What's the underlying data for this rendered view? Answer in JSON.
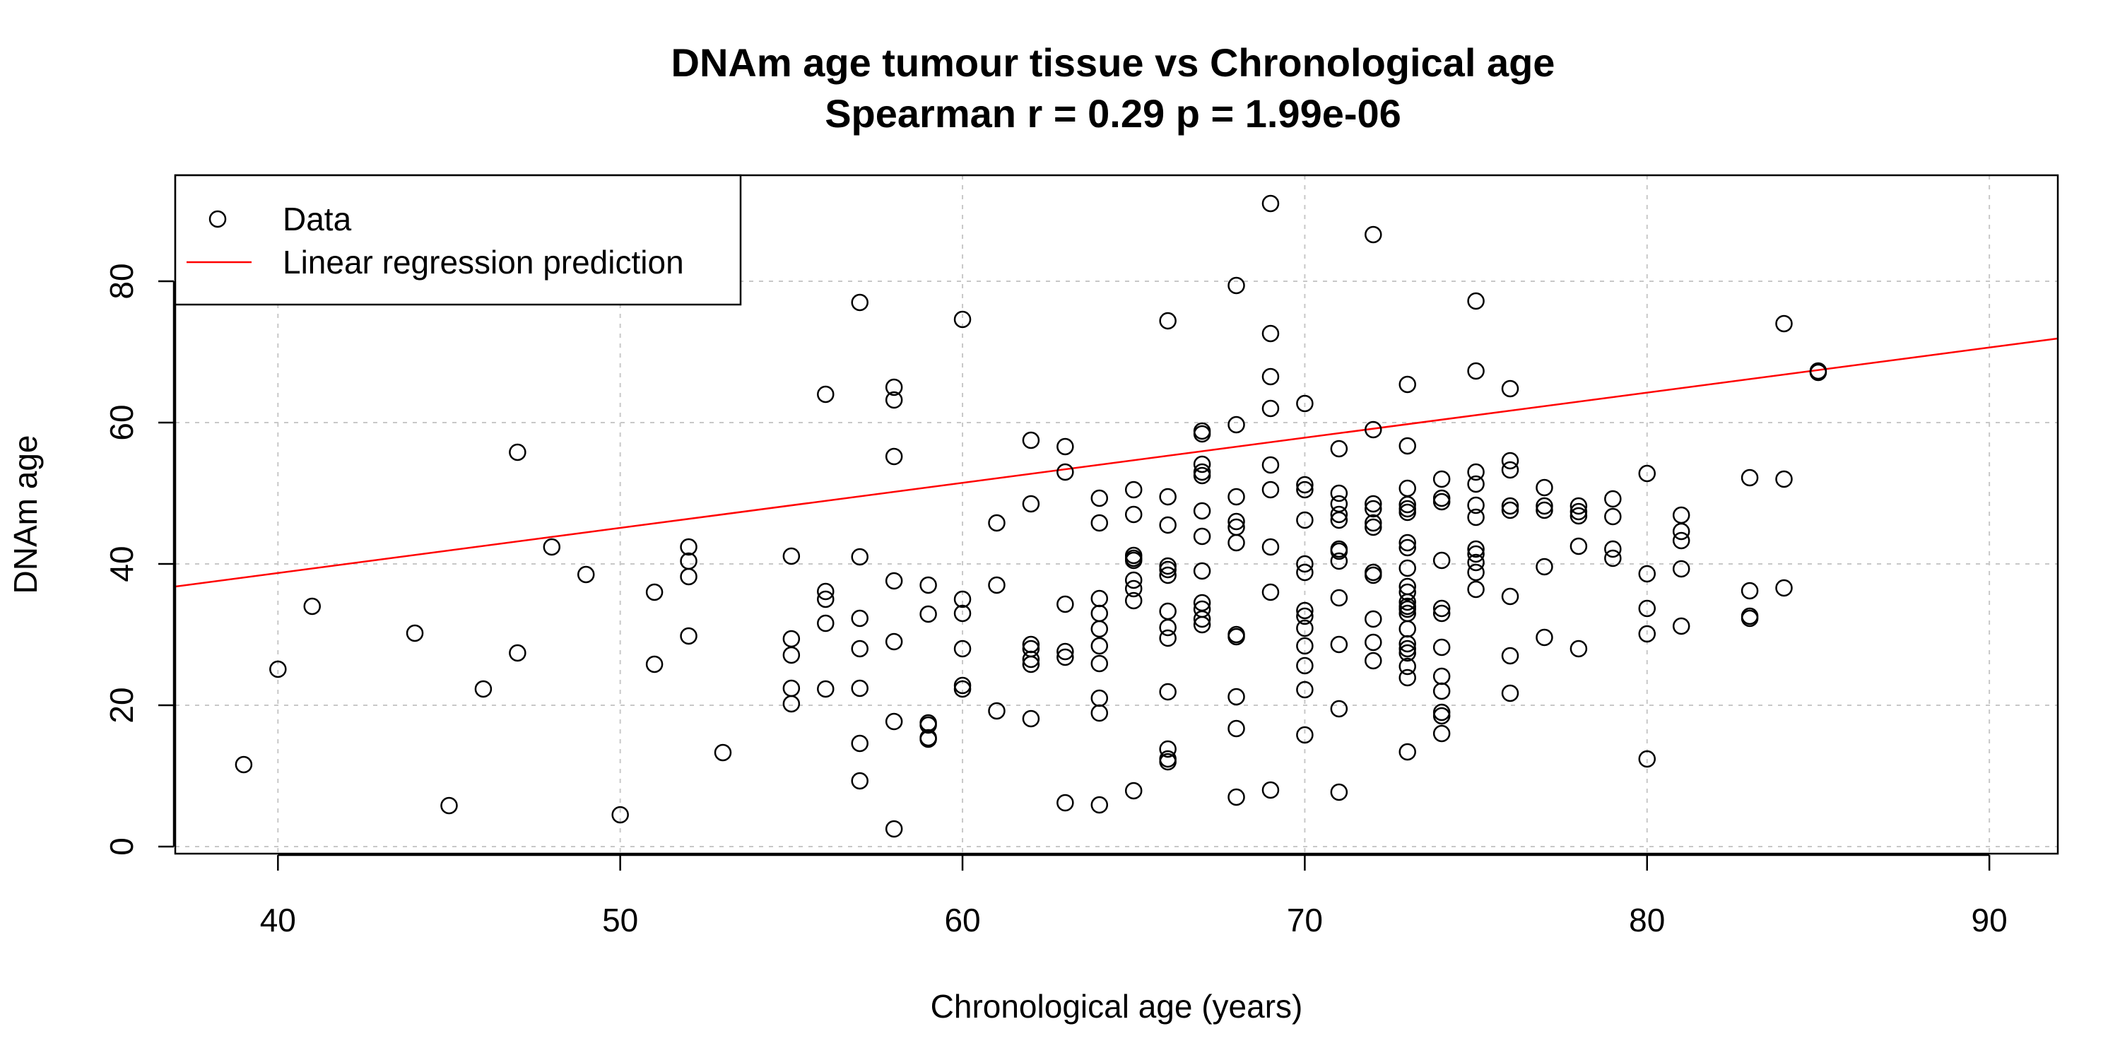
{
  "chart_data": {
    "type": "scatter",
    "title": "DNAm age tumour tissue vs Chronological age",
    "subtitle": "Spearman r = 0.29 p =  1.99e-06",
    "xlabel": "Chronological age (years)",
    "ylabel": "DNAm age",
    "xlim": [
      37,
      92
    ],
    "ylim": [
      -1,
      95
    ],
    "x_ticks": [
      40,
      50,
      60,
      70,
      80,
      90
    ],
    "y_ticks": [
      0,
      20,
      40,
      60,
      80
    ],
    "grid": true,
    "legend": {
      "position": "top-left",
      "entries": [
        {
          "label": "Data",
          "marker": "open-circle",
          "color": "#000000"
        },
        {
          "label": "Linear regression prediction",
          "marker": "line",
          "color": "#ff0000"
        }
      ]
    },
    "regression_line": {
      "x": [
        37,
        92
      ],
      "y": [
        36.8,
        71.9
      ],
      "color": "#ff0000"
    },
    "series": [
      {
        "name": "Data",
        "color": "#000000",
        "points": [
          [
            39,
            11.6
          ],
          [
            40,
            25.1
          ],
          [
            41,
            34.0
          ],
          [
            44,
            30.2
          ],
          [
            45,
            5.8
          ],
          [
            46,
            22.3
          ],
          [
            47,
            55.8
          ],
          [
            47,
            27.4
          ],
          [
            48,
            42.4
          ],
          [
            49,
            38.5
          ],
          [
            50,
            4.5
          ],
          [
            51,
            36.0
          ],
          [
            51,
            25.8
          ],
          [
            52,
            42.4
          ],
          [
            52,
            40.4
          ],
          [
            52,
            38.2
          ],
          [
            52,
            29.8
          ],
          [
            53,
            13.3
          ],
          [
            55,
            41.1
          ],
          [
            55,
            29.4
          ],
          [
            55,
            27.1
          ],
          [
            55,
            22.4
          ],
          [
            55,
            20.2
          ],
          [
            56,
            64.0
          ],
          [
            56,
            36.1
          ],
          [
            56,
            35.0
          ],
          [
            56,
            31.6
          ],
          [
            56,
            22.3
          ],
          [
            57,
            77.0
          ],
          [
            57,
            41.0
          ],
          [
            57,
            32.3
          ],
          [
            57,
            28.0
          ],
          [
            57,
            22.4
          ],
          [
            57,
            14.6
          ],
          [
            57,
            9.3
          ],
          [
            58,
            65.0
          ],
          [
            58,
            63.2
          ],
          [
            58,
            55.2
          ],
          [
            58,
            37.6
          ],
          [
            58,
            29.0
          ],
          [
            58,
            17.7
          ],
          [
            58,
            2.5
          ],
          [
            59,
            37.0
          ],
          [
            59,
            32.9
          ],
          [
            59,
            17.5
          ],
          [
            59,
            17.2
          ],
          [
            59,
            15.4
          ],
          [
            59,
            15.2
          ],
          [
            60,
            74.6
          ],
          [
            60,
            35.0
          ],
          [
            60,
            33.0
          ],
          [
            60,
            28.0
          ],
          [
            60,
            22.8
          ],
          [
            60,
            22.3
          ],
          [
            61,
            45.8
          ],
          [
            61,
            37.0
          ],
          [
            61,
            19.2
          ],
          [
            62,
            57.5
          ],
          [
            62,
            48.5
          ],
          [
            62,
            28.6
          ],
          [
            62,
            28.0
          ],
          [
            62,
            26.5
          ],
          [
            62,
            25.8
          ],
          [
            62,
            18.1
          ],
          [
            63,
            56.6
          ],
          [
            63,
            53.0
          ],
          [
            63,
            34.3
          ],
          [
            63,
            27.6
          ],
          [
            63,
            26.8
          ],
          [
            63,
            6.2
          ],
          [
            64,
            49.3
          ],
          [
            64,
            45.8
          ],
          [
            64,
            35.1
          ],
          [
            64,
            33.0
          ],
          [
            64,
            30.8
          ],
          [
            64,
            28.4
          ],
          [
            64,
            25.9
          ],
          [
            64,
            21.0
          ],
          [
            64,
            18.9
          ],
          [
            64,
            5.9
          ],
          [
            65,
            50.5
          ],
          [
            65,
            47.0
          ],
          [
            65,
            41.2
          ],
          [
            65,
            40.8
          ],
          [
            65,
            40.5
          ],
          [
            65,
            37.7
          ],
          [
            65,
            36.5
          ],
          [
            65,
            34.8
          ],
          [
            65,
            7.9
          ],
          [
            66,
            74.4
          ],
          [
            66,
            49.5
          ],
          [
            66,
            45.5
          ],
          [
            66,
            39.7
          ],
          [
            66,
            39.2
          ],
          [
            66,
            38.4
          ],
          [
            66,
            33.3
          ],
          [
            66,
            31.0
          ],
          [
            66,
            29.5
          ],
          [
            66,
            21.9
          ],
          [
            66,
            13.8
          ],
          [
            66,
            12.4
          ],
          [
            66,
            12.0
          ],
          [
            67,
            58.8
          ],
          [
            67,
            58.4
          ],
          [
            67,
            54.1
          ],
          [
            67,
            53.0
          ],
          [
            67,
            52.5
          ],
          [
            67,
            47.5
          ],
          [
            67,
            43.9
          ],
          [
            67,
            39.0
          ],
          [
            67,
            34.5
          ],
          [
            67,
            33.6
          ],
          [
            67,
            32.2
          ],
          [
            67,
            31.4
          ],
          [
            68,
            79.4
          ],
          [
            68,
            59.7
          ],
          [
            68,
            49.5
          ],
          [
            68,
            46.0
          ],
          [
            68,
            45.2
          ],
          [
            68,
            43.0
          ],
          [
            68,
            30.0
          ],
          [
            68,
            29.7
          ],
          [
            68,
            21.2
          ],
          [
            68,
            16.7
          ],
          [
            68,
            7.0
          ],
          [
            69,
            91.0
          ],
          [
            69,
            72.6
          ],
          [
            69,
            66.5
          ],
          [
            69,
            62.0
          ],
          [
            69,
            54.0
          ],
          [
            69,
            50.5
          ],
          [
            69,
            42.4
          ],
          [
            69,
            36.0
          ],
          [
            69,
            8.0
          ],
          [
            70,
            62.7
          ],
          [
            70,
            51.2
          ],
          [
            70,
            50.5
          ],
          [
            70,
            46.2
          ],
          [
            70,
            40.0
          ],
          [
            70,
            38.8
          ],
          [
            70,
            33.4
          ],
          [
            70,
            32.6
          ],
          [
            70,
            30.9
          ],
          [
            70,
            28.4
          ],
          [
            70,
            25.6
          ],
          [
            70,
            22.2
          ],
          [
            70,
            15.8
          ],
          [
            71,
            56.3
          ],
          [
            71,
            50.0
          ],
          [
            71,
            48.5
          ],
          [
            71,
            47.0
          ],
          [
            71,
            46.2
          ],
          [
            71,
            42.1
          ],
          [
            71,
            41.8
          ],
          [
            71,
            40.4
          ],
          [
            71,
            35.2
          ],
          [
            71,
            28.6
          ],
          [
            71,
            19.5
          ],
          [
            71,
            7.7
          ],
          [
            72,
            86.6
          ],
          [
            72,
            59.0
          ],
          [
            72,
            48.5
          ],
          [
            72,
            47.8
          ],
          [
            72,
            45.8
          ],
          [
            72,
            45.2
          ],
          [
            72,
            38.8
          ],
          [
            72,
            38.4
          ],
          [
            72,
            32.2
          ],
          [
            72,
            28.9
          ],
          [
            72,
            26.3
          ],
          [
            73,
            65.4
          ],
          [
            73,
            56.7
          ],
          [
            73,
            50.7
          ],
          [
            73,
            48.4
          ],
          [
            73,
            47.8
          ],
          [
            73,
            47.3
          ],
          [
            73,
            43.0
          ],
          [
            73,
            42.3
          ],
          [
            73,
            39.4
          ],
          [
            73,
            36.8
          ],
          [
            73,
            36.0
          ],
          [
            73,
            34.6
          ],
          [
            73,
            34.0
          ],
          [
            73,
            33.6
          ],
          [
            73,
            33.0
          ],
          [
            73,
            30.8
          ],
          [
            73,
            28.7
          ],
          [
            73,
            28.0
          ],
          [
            73,
            27.4
          ],
          [
            73,
            25.5
          ],
          [
            73,
            23.9
          ],
          [
            73,
            13.4
          ],
          [
            74,
            52.0
          ],
          [
            74,
            49.3
          ],
          [
            74,
            48.8
          ],
          [
            74,
            40.5
          ],
          [
            74,
            33.7
          ],
          [
            74,
            33.0
          ],
          [
            74,
            28.2
          ],
          [
            74,
            24.1
          ],
          [
            74,
            22.0
          ],
          [
            74,
            19.0
          ],
          [
            74,
            18.5
          ],
          [
            74,
            16.0
          ],
          [
            75,
            77.2
          ],
          [
            75,
            67.3
          ],
          [
            75,
            53.0
          ],
          [
            75,
            51.3
          ],
          [
            75,
            48.3
          ],
          [
            75,
            46.6
          ],
          [
            75,
            42.1
          ],
          [
            75,
            41.4
          ],
          [
            75,
            40.2
          ],
          [
            75,
            38.8
          ],
          [
            75,
            36.4
          ],
          [
            76,
            64.8
          ],
          [
            76,
            54.6
          ],
          [
            76,
            53.3
          ],
          [
            76,
            48.2
          ],
          [
            76,
            47.6
          ],
          [
            76,
            35.4
          ],
          [
            76,
            27.0
          ],
          [
            76,
            21.7
          ],
          [
            77,
            50.8
          ],
          [
            77,
            48.2
          ],
          [
            77,
            47.6
          ],
          [
            77,
            39.6
          ],
          [
            77,
            29.6
          ],
          [
            78,
            48.2
          ],
          [
            78,
            47.4
          ],
          [
            78,
            46.8
          ],
          [
            78,
            42.5
          ],
          [
            78,
            28.0
          ],
          [
            79,
            49.2
          ],
          [
            79,
            46.7
          ],
          [
            79,
            42.1
          ],
          [
            79,
            40.8
          ],
          [
            80,
            52.8
          ],
          [
            80,
            38.6
          ],
          [
            80,
            33.7
          ],
          [
            80,
            30.1
          ],
          [
            80,
            12.4
          ],
          [
            81,
            46.9
          ],
          [
            81,
            44.6
          ],
          [
            81,
            43.3
          ],
          [
            81,
            39.3
          ],
          [
            81,
            31.2
          ],
          [
            83,
            52.2
          ],
          [
            83,
            36.2
          ],
          [
            83,
            32.6
          ],
          [
            83,
            32.3
          ],
          [
            84,
            74.0
          ],
          [
            84,
            52.0
          ],
          [
            84,
            36.6
          ],
          [
            85,
            67.3
          ],
          [
            85,
            67.1
          ]
        ]
      }
    ]
  }
}
